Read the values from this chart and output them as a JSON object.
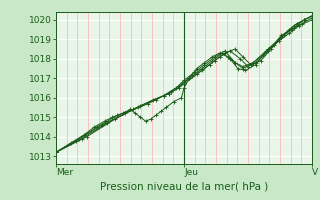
{
  "bg_color": "#c8e8c8",
  "plot_bg_color": "#e8f5e8",
  "grid_color_h": "#ffffff",
  "grid_color_v": "#ffb0b0",
  "line_color": "#1a5c1a",
  "marker_color": "#1a5c1a",
  "ylabel_ticks": [
    1013,
    1014,
    1015,
    1016,
    1017,
    1018,
    1019,
    1020
  ],
  "ylim": [
    1012.6,
    1020.4
  ],
  "xlabel": "Pression niveau de la mer( hPa )",
  "x_tick_labels": [
    "Mer",
    "Jeu",
    "V"
  ],
  "x_tick_positions": [
    0.0,
    0.5,
    1.0
  ],
  "tick_fontsize": 6.5,
  "xlabel_fontsize": 7.5,
  "num_v_minor": 24,
  "series": [
    [
      0.0,
      1013.2,
      0.06,
      1013.7,
      0.11,
      1014.1,
      0.15,
      1014.5,
      0.19,
      1014.8,
      0.22,
      1015.0,
      0.26,
      1015.2,
      0.29,
      1015.4,
      0.31,
      1015.2,
      0.33,
      1015.0,
      0.35,
      1014.8,
      0.37,
      1014.9,
      0.39,
      1015.1,
      0.41,
      1015.3,
      0.43,
      1015.5,
      0.46,
      1015.8,
      0.49,
      1016.0,
      0.5,
      1016.5,
      0.52,
      1017.0,
      0.55,
      1017.5,
      0.58,
      1017.8,
      0.61,
      1018.1,
      0.64,
      1018.3,
      0.67,
      1018.1,
      0.7,
      1017.8,
      0.73,
      1017.6,
      0.77,
      1017.8,
      0.81,
      1018.2,
      0.85,
      1018.7,
      0.88,
      1019.1,
      0.91,
      1019.5,
      0.94,
      1019.8,
      0.97,
      1020.0,
      1.0,
      1020.2
    ],
    [
      0.0,
      1013.2,
      0.08,
      1013.8,
      0.16,
      1014.5,
      0.24,
      1015.1,
      0.32,
      1015.5,
      0.38,
      1015.9,
      0.44,
      1016.2,
      0.48,
      1016.5,
      0.5,
      1016.8,
      0.53,
      1017.1,
      0.57,
      1017.5,
      0.61,
      1017.9,
      0.65,
      1018.3,
      0.68,
      1018.0,
      0.71,
      1017.5,
      0.74,
      1017.4,
      0.78,
      1017.7,
      0.83,
      1018.5,
      0.87,
      1018.9,
      0.91,
      1019.3,
      0.95,
      1019.7,
      1.0,
      1020.0
    ],
    [
      0.0,
      1013.2,
      0.09,
      1013.9,
      0.18,
      1014.6,
      0.27,
      1015.2,
      0.36,
      1015.7,
      0.42,
      1016.1,
      0.47,
      1016.5,
      0.5,
      1016.9,
      0.54,
      1017.3,
      0.58,
      1017.7,
      0.62,
      1018.1,
      0.66,
      1018.4,
      0.7,
      1017.8,
      0.73,
      1017.5,
      0.77,
      1017.8,
      0.82,
      1018.4,
      0.87,
      1019.0,
      0.92,
      1019.5,
      0.96,
      1019.8,
      1.0,
      1020.1
    ],
    [
      0.0,
      1013.2,
      0.1,
      1013.9,
      0.2,
      1014.7,
      0.3,
      1015.4,
      0.39,
      1015.9,
      0.45,
      1016.3,
      0.5,
      1016.7,
      0.55,
      1017.2,
      0.6,
      1017.7,
      0.64,
      1018.1,
      0.68,
      1018.4,
      0.72,
      1018.0,
      0.75,
      1017.6,
      0.78,
      1017.8,
      0.83,
      1018.4,
      0.88,
      1019.2,
      0.93,
      1019.6,
      0.97,
      1020.0,
      1.0,
      1020.2
    ],
    [
      0.0,
      1013.2,
      0.12,
      1014.0,
      0.23,
      1014.9,
      0.33,
      1015.6,
      0.42,
      1016.1,
      0.48,
      1016.6,
      0.52,
      1017.0,
      0.57,
      1017.4,
      0.62,
      1017.9,
      0.66,
      1018.3,
      0.7,
      1018.5,
      0.73,
      1018.1,
      0.76,
      1017.7,
      0.8,
      1017.9,
      0.84,
      1018.5,
      0.89,
      1019.2,
      0.93,
      1019.7,
      0.97,
      1020.0,
      1.0,
      1020.2
    ]
  ]
}
